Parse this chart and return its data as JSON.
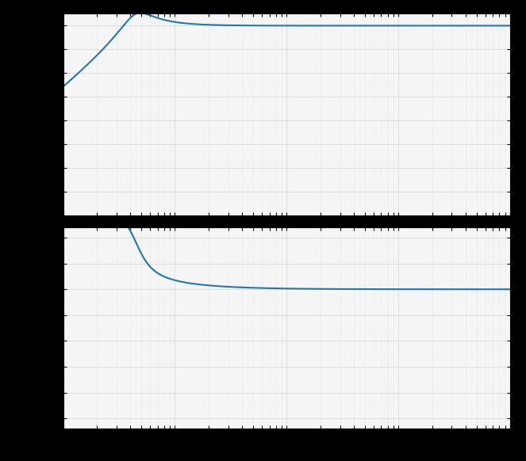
{
  "line_color": "#1f77b4",
  "line_width": 1.5,
  "background_color": "#f5f5f5",
  "grid_color_major": "#ffffff",
  "grid_color_minor": "#d0d0d0",
  "fig_width": 6.63,
  "fig_height": 5.82,
  "dpi": 100,
  "freq_min": 1,
  "freq_max": 10000,
  "f0": 4.5,
  "zeta": 0.28,
  "outer_bg": "#000000",
  "subplot_hspace": 0.06
}
